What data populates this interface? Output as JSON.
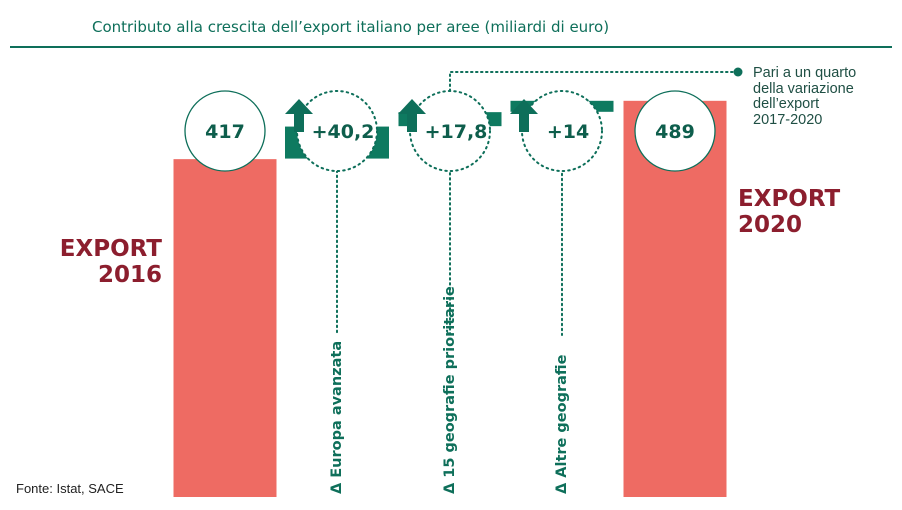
{
  "title": "Contributo alla crescita dell’export italiano per aree (miliardi di euro)",
  "source": "Fonte: Istat, SACE",
  "note": [
    "Pari a un quarto",
    "della variazione",
    "dell’export",
    "2017-2020"
  ],
  "colors": {
    "total": "#ee6b63",
    "increment": "#0e7a60",
    "title": "#0e6f5a",
    "label": "#8c1e2e"
  },
  "chart_data": {
    "type": "bar",
    "subtype": "waterfall",
    "title": "Contributo alla crescita dell’export italiano per aree (miliardi di euro)",
    "categories": [
      "EXPORT 2016",
      "Δ Europa avanzata",
      "Δ 15 geografie prioritarie",
      "Δ Altre geografie",
      "EXPORT 2020"
    ],
    "values": [
      417,
      40.2,
      17.8,
      14,
      489
    ],
    "value_labels": [
      "417",
      "+40,2",
      "+17,8",
      "+14",
      "489"
    ],
    "kinds": [
      "total",
      "increment",
      "increment",
      "increment",
      "total"
    ],
    "total_labels": {
      "start": [
        "EXPORT",
        "2016"
      ],
      "end": [
        "EXPORT",
        "2020"
      ]
    },
    "increment_labels": [
      "Δ Europa avanzata",
      "Δ 15 geografie prioritarie",
      "Δ Altre geografie"
    ]
  }
}
